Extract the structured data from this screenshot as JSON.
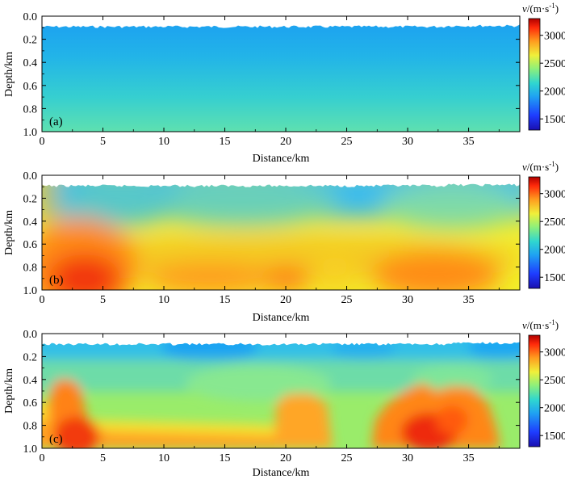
{
  "chart_data": [
    {
      "type": "heatmap",
      "panel_label": "(a)",
      "xlabel": "Distance/km",
      "ylabel": "Depth/km",
      "xlim": [
        0,
        39.2
      ],
      "ylim": [
        1.0,
        0.0
      ],
      "x_ticks": [
        "0",
        "5",
        "10",
        "15",
        "20",
        "25",
        "30",
        "35"
      ],
      "y_ticks": [
        "0.0",
        "0.2",
        "0.4",
        "0.6",
        "0.8",
        "1.0"
      ],
      "colorbar": {
        "label": "v/(m·s⁻¹)",
        "range": [
          1300,
          3300
        ],
        "ticks": [
          "3000",
          "2500",
          "2000",
          "1500"
        ]
      },
      "velocity_model": "initial gradient model: ~1950 m/s near surface increasing to ~2300 m/s at 1.0 km"
    },
    {
      "type": "heatmap",
      "panel_label": "(b)",
      "xlabel": "Distance/km",
      "ylabel": "Depth/km",
      "xlim": [
        0,
        39.2
      ],
      "ylim": [
        1.0,
        0.0
      ],
      "x_ticks": [
        "0",
        "5",
        "10",
        "15",
        "20",
        "25",
        "30",
        "35"
      ],
      "y_ticks": [
        "0.0",
        "0.2",
        "0.4",
        "0.6",
        "0.8",
        "1.0"
      ],
      "colorbar": {
        "label": "v/(m·s⁻¹)",
        "range": [
          1300,
          3300
        ],
        "ticks": [
          "3000",
          "2500",
          "2000",
          "1500"
        ]
      },
      "velocity_model": "smooth inverted model: ~2050 m/s near surface, 2900–3200 m/s at depth, highest near x≈3 km"
    },
    {
      "type": "heatmap",
      "panel_label": "(c)",
      "xlabel": "Distance/km",
      "ylabel": "Depth/km",
      "xlim": [
        0,
        39.2
      ],
      "ylim": [
        1.0,
        0.0
      ],
      "x_ticks": [
        "0",
        "5",
        "10",
        "15",
        "20",
        "25",
        "30",
        "35"
      ],
      "y_ticks": [
        "0.0",
        "0.2",
        "0.4",
        "0.6",
        "0.8",
        "1.0"
      ],
      "colorbar": {
        "label": "v/(m·s⁻¹)",
        "range": [
          1300,
          3300
        ],
        "ticks": [
          "3000",
          "2500",
          "2000",
          "1500"
        ]
      },
      "velocity_model": "detailed inverted model: high-velocity bodies (~3100–3300 m/s) near x≈2–4 km, 20–23 km and 29–35 km at depth"
    }
  ]
}
